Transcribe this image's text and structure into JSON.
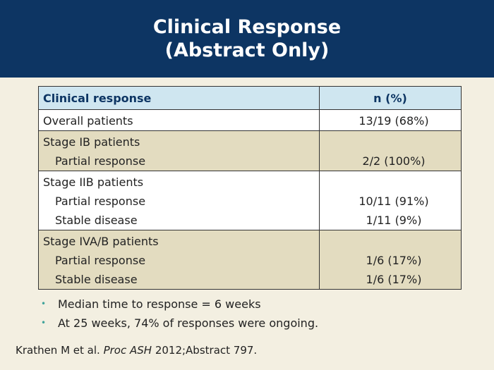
{
  "slide": {
    "title_line1": "Clinical Response",
    "title_line2": "(Abstract Only)"
  },
  "table": {
    "headers": [
      "Clinical response",
      "n (%)"
    ],
    "rows": [
      {
        "label": "Overall patients",
        "value": "13/19 (68%)"
      },
      {
        "label": "Stage IB patients",
        "value": ""
      },
      {
        "label": "Partial response",
        "value": "2/2 (100%)"
      },
      {
        "label": "Stage IIB patients",
        "value": ""
      },
      {
        "label": "Partial response",
        "value": "10/11 (91%)"
      },
      {
        "label": "Stable disease",
        "value": "1/11 (9%)"
      },
      {
        "label": "Stage IVA/B patients",
        "value": ""
      },
      {
        "label": "Partial response",
        "value": "1/6 (17%)"
      },
      {
        "label": "Stable disease",
        "value": "1/6 (17%)"
      }
    ]
  },
  "bullets": [
    "Median time to response = 6 weeks",
    "At 25 weeks, 74% of responses were ongoing."
  ],
  "reference": {
    "authors": "Krathen M et al. ",
    "journal": "Proc ASH",
    "details": " 2012;Abstract 797."
  },
  "colors": {
    "header_bg": "#0d3563",
    "table_header_bg": "#cfe6f0",
    "row_tan": "#e3dcc0",
    "bullet": "#3fa39a"
  }
}
